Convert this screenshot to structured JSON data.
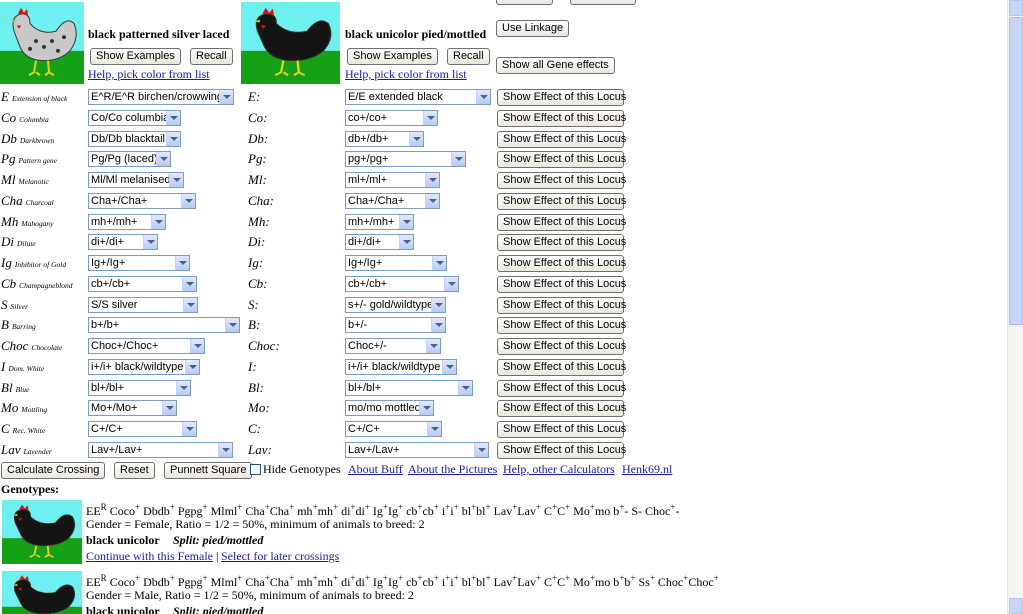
{
  "parents": [
    {
      "description": "black patterned silver laced",
      "buttons": [
        "Show Examples",
        "Recall"
      ],
      "help_link": "Help, pick color from list"
    },
    {
      "description": "black unicolor pied/mottled",
      "buttons": [
        "Show Examples",
        "Recall"
      ],
      "help_link": "Help, pick color from list"
    }
  ],
  "side_buttons": [
    "Use Linkage",
    "Show all Gene effects"
  ],
  "loci": [
    {
      "symbol": "E",
      "name": "Extension of black",
      "parent1": "E^R/E^R birchen/crowwing",
      "label2": "E:",
      "parent2": "E/E extended black",
      "button": "Show Effect of this Locus"
    },
    {
      "symbol": "Co",
      "name": "Columbia",
      "parent1": "Co/Co columbia",
      "label2": "Co:",
      "parent2": "co+/co+",
      "button": "Show Effect of this Locus"
    },
    {
      "symbol": "Db",
      "name": "Darkbrown",
      "parent1": "Db/Db blacktail",
      "label2": "Db:",
      "parent2": "db+/db+",
      "button": "Show Effect of this Locus"
    },
    {
      "symbol": "Pg",
      "name": "Pattern gene",
      "parent1": "Pg/Pg (laced)",
      "label2": "Pg:",
      "parent2": "pg+/pg+",
      "button": "Show Effect of this Locus"
    },
    {
      "symbol": "Ml",
      "name": "Melanotic",
      "parent1": "Ml/Ml melanised",
      "label2": "Ml:",
      "parent2": "ml+/ml+",
      "button": "Show Effect of this Locus"
    },
    {
      "symbol": "Cha",
      "name": "Charcoal",
      "parent1": "Cha+/Cha+",
      "label2": "Cha:",
      "parent2": "Cha+/Cha+",
      "button": "Show Effect of this Locus"
    },
    {
      "symbol": "Mh",
      "name": "Mahogany",
      "parent1": "mh+/mh+",
      "label2": "Mh:",
      "parent2": "mh+/mh+",
      "button": "Show Effect of this Locus"
    },
    {
      "symbol": "Di",
      "name": "Dilute",
      "parent1": "di+/di+",
      "label2": "Di:",
      "parent2": "di+/di+",
      "button": "Show Effect of this Locus"
    },
    {
      "symbol": "Ig",
      "name": "Inhibitor of Gold",
      "parent1": "Ig+/Ig+",
      "label2": "Ig:",
      "parent2": "Ig+/Ig+",
      "button": "Show Effect of this Locus"
    },
    {
      "symbol": "Cb",
      "name": "Champagneblond",
      "parent1": "cb+/cb+",
      "label2": "Cb:",
      "parent2": "cb+/cb+",
      "button": "Show Effect of this Locus"
    },
    {
      "symbol": "S",
      "name": "Silver",
      "parent1": "S/S silver",
      "label2": "S:",
      "parent2": "s+/- gold/wildtype",
      "button": "Show Effect of this Locus"
    },
    {
      "symbol": "B",
      "name": "Barring",
      "parent1": "b+/b+",
      "label2": "B:",
      "parent2": "b+/-",
      "button": "Show Effect of this Locus"
    },
    {
      "symbol": "Choc",
      "name": "Chocolate",
      "parent1": "Choc+/Choc+",
      "label2": "Choc:",
      "parent2": "Choc+/-",
      "button": "Show Effect of this Locus"
    },
    {
      "symbol": "I",
      "name": "Dom. White",
      "parent1": "i+/i+ black/wildtype",
      "label2": "I:",
      "parent2": "i+/i+ black/wildtype",
      "button": "Show Effect of this Locus"
    },
    {
      "symbol": "Bl",
      "name": "Blue",
      "parent1": "bl+/bl+",
      "label2": "Bl:",
      "parent2": "bl+/bl+",
      "button": "Show Effect of this Locus"
    },
    {
      "symbol": "Mo",
      "name": "Mottling",
      "parent1": "Mo+/Mo+",
      "label2": "Mo:",
      "parent2": "mo/mo mottled",
      "button": "Show Effect of this Locus"
    },
    {
      "symbol": "C",
      "name": "Rec. White",
      "parent1": "C+/C+",
      "label2": "C:",
      "parent2": "C+/C+",
      "button": "Show Effect of this Locus"
    },
    {
      "symbol": "Lav",
      "name": "Lavender",
      "parent1": "Lav+/Lav+",
      "label2": "Lav:",
      "parent2": "Lav+/Lav+",
      "button": "Show Effect of this Locus"
    }
  ],
  "actions": [
    "Calculate Crossing",
    "Reset",
    "Punnett Square"
  ],
  "hide_genotypes": "Hide Genotypes",
  "links": [
    "About Buff",
    "About the Pictures",
    "Help, other Calculators",
    "Henk69.nl"
  ],
  "genotypes_heading": "Genotypes:",
  "results": [
    {
      "genotype": [
        "EE",
        {
          "sup": "R"
        },
        " Coco",
        {
          "sup": "+"
        },
        " Dbdb",
        {
          "sup": "+"
        },
        " Pgpg",
        {
          "sup": "+"
        },
        " Mlml",
        {
          "sup": "+"
        },
        " Cha",
        {
          "sup": "+"
        },
        "Cha",
        {
          "sup": "+"
        },
        " mh",
        {
          "sup": "+"
        },
        "mh",
        {
          "sup": "+"
        },
        " di",
        {
          "sup": "+"
        },
        "di",
        {
          "sup": "+"
        },
        " Ig",
        {
          "sup": "+"
        },
        "Ig",
        {
          "sup": "+"
        },
        " cb",
        {
          "sup": "+"
        },
        "cb",
        {
          "sup": "+"
        },
        " i",
        {
          "sup": "+"
        },
        "i",
        {
          "sup": "+"
        },
        " bl",
        {
          "sup": "+"
        },
        "bl",
        {
          "sup": "+"
        },
        " Lav",
        {
          "sup": "+"
        },
        "Lav",
        {
          "sup": "+"
        },
        " C",
        {
          "sup": "+"
        },
        "C",
        {
          "sup": "+"
        },
        " Mo",
        {
          "sup": "+"
        },
        "mo b",
        {
          "sup": "+"
        },
        "- S- Choc",
        {
          "sup": "+"
        },
        "-"
      ],
      "gender_line": "Gender = Female, Ratio = 1/2 = 50%, minimum of animals to breed: 2",
      "color": "black unicolor",
      "split": "Split: pied/mottled",
      "links": [
        "Continue with this Female",
        "Select for later crossings"
      ],
      "link_separator": "|"
    },
    {
      "genotype": [
        "EE",
        {
          "sup": "R"
        },
        " Coco",
        {
          "sup": "+"
        },
        " Dbdb",
        {
          "sup": "+"
        },
        " Pgpg",
        {
          "sup": "+"
        },
        " Mlml",
        {
          "sup": "+"
        },
        " Cha",
        {
          "sup": "+"
        },
        "Cha",
        {
          "sup": "+"
        },
        " mh",
        {
          "sup": "+"
        },
        "mh",
        {
          "sup": "+"
        },
        " di",
        {
          "sup": "+"
        },
        "di",
        {
          "sup": "+"
        },
        " Ig",
        {
          "sup": "+"
        },
        "Ig",
        {
          "sup": "+"
        },
        " cb",
        {
          "sup": "+"
        },
        "cb",
        {
          "sup": "+"
        },
        " i",
        {
          "sup": "+"
        },
        "i",
        {
          "sup": "+"
        },
        " bl",
        {
          "sup": "+"
        },
        "bl",
        {
          "sup": "+"
        },
        " Lav",
        {
          "sup": "+"
        },
        "Lav",
        {
          "sup": "+"
        },
        " C",
        {
          "sup": "+"
        },
        "C",
        {
          "sup": "+"
        },
        " Mo",
        {
          "sup": "+"
        },
        "mo b",
        {
          "sup": "+"
        },
        "b",
        {
          "sup": "+"
        },
        " Ss",
        {
          "sup": "+"
        },
        " Choc",
        {
          "sup": "+"
        },
        "Choc",
        {
          "sup": "+"
        }
      ],
      "gender_line": "Gender = Male, Ratio = 1/2 = 50%, minimum of animals to breed: 2",
      "color": "black unicolor",
      "split": "Split: pied/mottled"
    }
  ]
}
